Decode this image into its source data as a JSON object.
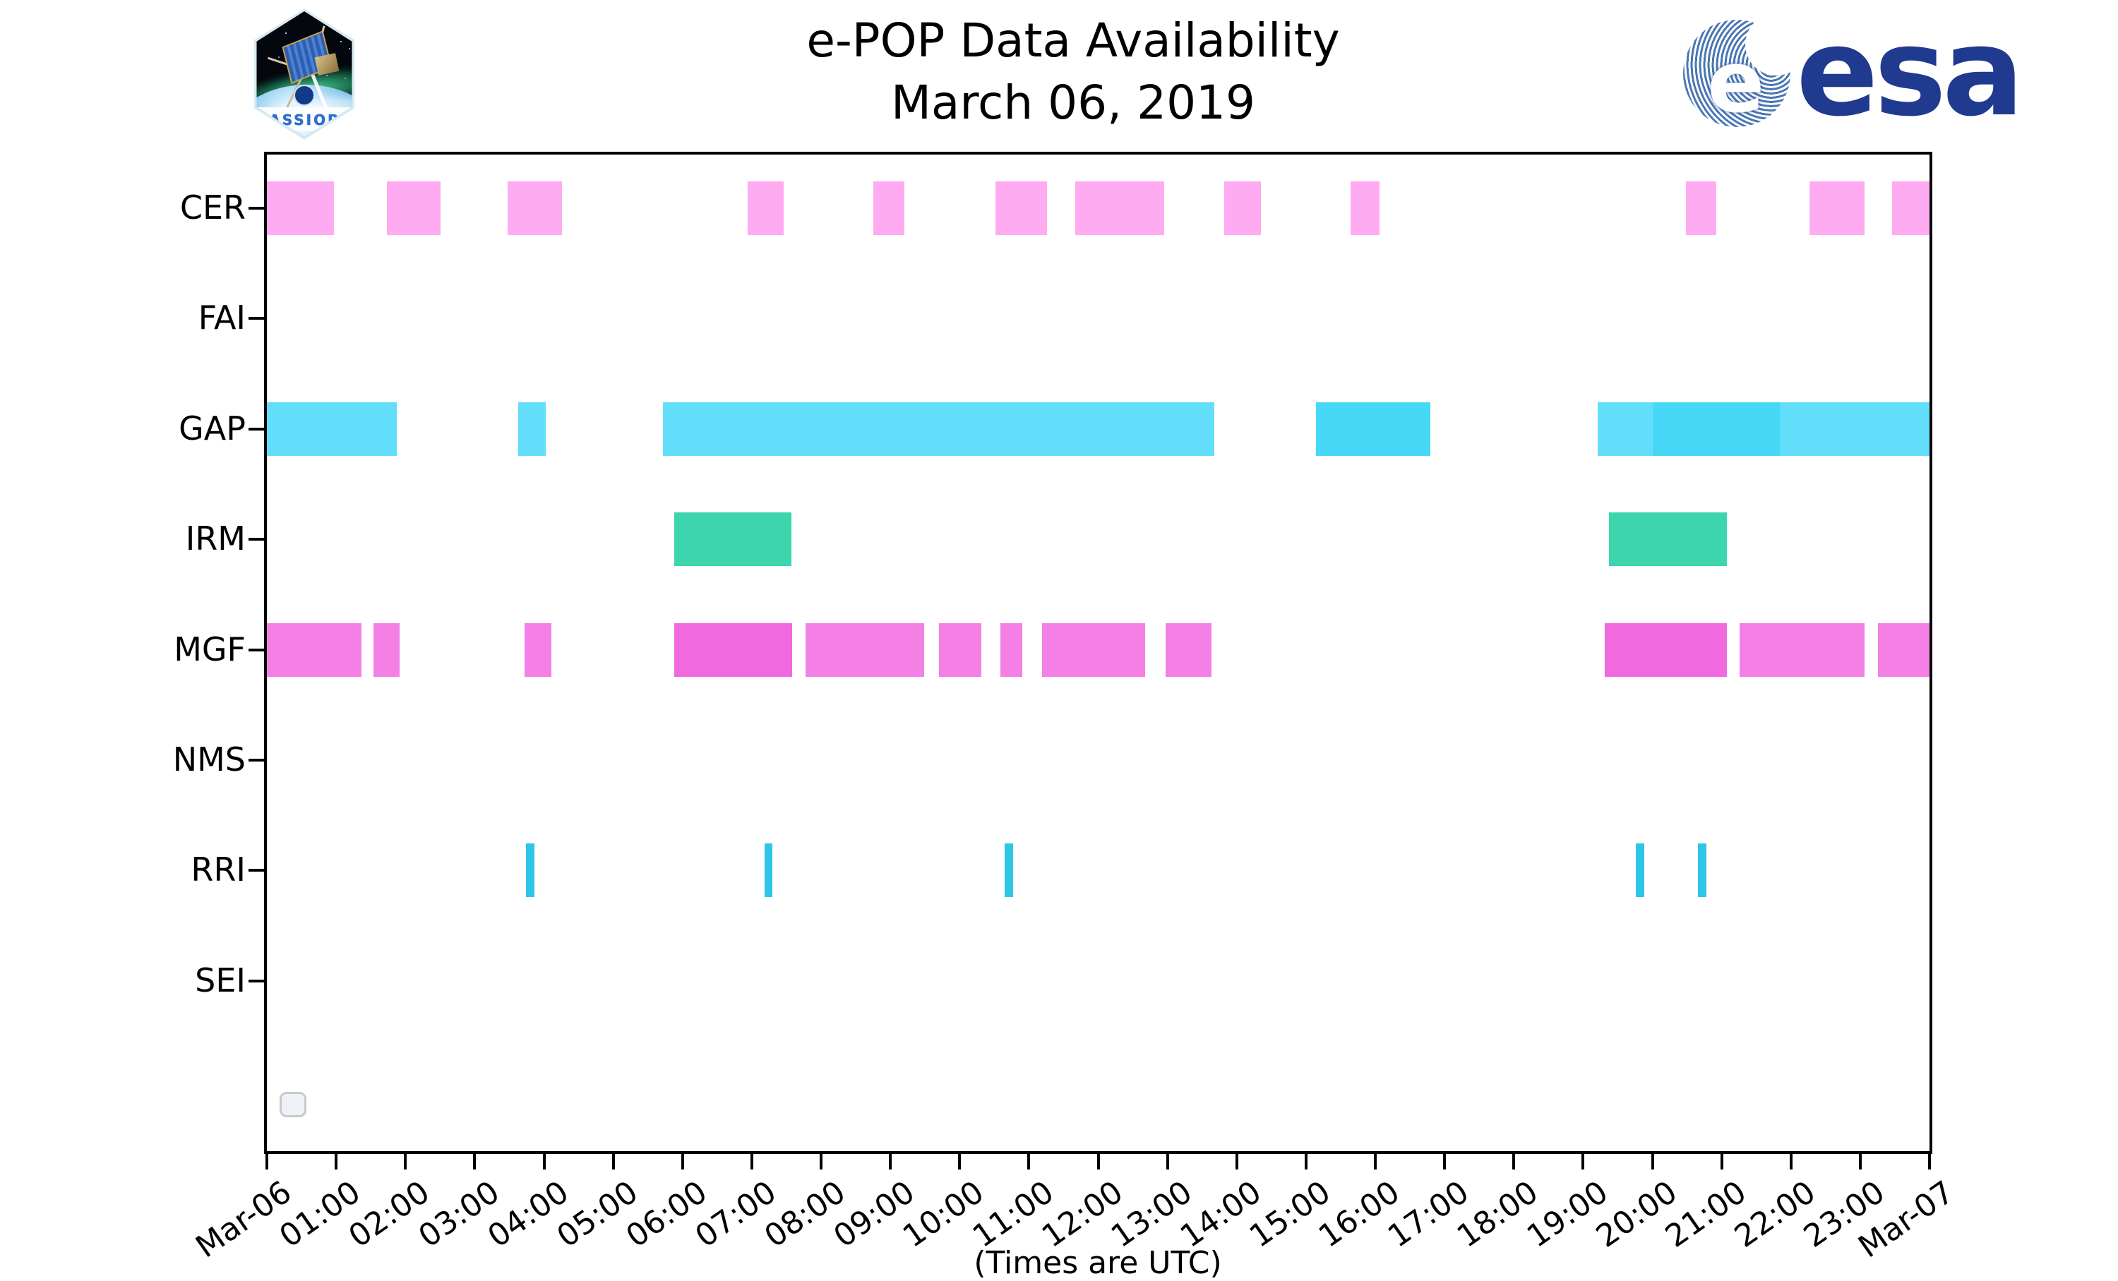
{
  "header": {
    "cassiope_label": "CASSIOPE",
    "esa_wordmark": "esa",
    "esa_e": "e"
  },
  "colors": {
    "pink": "#ffabf2",
    "cyan_light": "#63defa",
    "cyan_dark": "#48d8f7",
    "teal": "#3dd5ae",
    "magenta_light": "#f480e5",
    "magenta_dark": "#f169df",
    "rri_blue": "#2ec6e6",
    "esa_blue": "#1f3a8f",
    "axis_black": "#000000"
  },
  "dark_variant_of": {
    "cyan_light": "cyan_dark",
    "magenta_light": "magenta_dark"
  },
  "chart_data": {
    "type": "timeline",
    "title": "e-POP Data Availability",
    "subtitle": "March 06, 2019",
    "xlabel": "(Times are UTC)",
    "x_range_hours": [
      0,
      24
    ],
    "x_tick_labels": [
      "Mar-06",
      "01:00",
      "02:00",
      "03:00",
      "04:00",
      "05:00",
      "06:00",
      "07:00",
      "08:00",
      "09:00",
      "10:00",
      "11:00",
      "12:00",
      "13:00",
      "14:00",
      "15:00",
      "16:00",
      "17:00",
      "18:00",
      "19:00",
      "20:00",
      "21:00",
      "22:00",
      "23:00",
      "Mar-07"
    ],
    "rows": [
      {
        "label": "CER",
        "color_key": "pink",
        "intervals": [
          [
            0,
            0.97
          ],
          [
            1.73,
            2.51
          ],
          [
            3.48,
            4.26
          ],
          [
            6.94,
            7.46
          ],
          [
            8.75,
            9.2
          ],
          [
            10.52,
            11.26
          ],
          [
            11.67,
            12.95
          ],
          [
            13.82,
            14.35
          ],
          [
            15.64,
            16.06
          ],
          [
            20.48,
            20.92
          ],
          [
            22.27,
            23.06
          ],
          [
            23.46,
            24
          ]
        ]
      },
      {
        "label": "FAI",
        "color_key": "cyan_light",
        "intervals": []
      },
      {
        "label": "GAP",
        "color_key": "cyan_light",
        "intervals": [
          [
            0,
            1.88
          ],
          [
            3.63,
            4.03
          ],
          [
            5.72,
            13.68
          ],
          [
            15.14,
            16.8,
            "d"
          ],
          [
            19.21,
            20.01
          ],
          [
            20.01,
            21.84,
            "d"
          ],
          [
            21.84,
            24
          ]
        ]
      },
      {
        "label": "IRM",
        "color_key": "teal",
        "intervals": [
          [
            5.88,
            7.57
          ],
          [
            19.37,
            21.08
          ]
        ]
      },
      {
        "label": "MGF",
        "color_key": "magenta_light",
        "intervals": [
          [
            0,
            1.37
          ],
          [
            1.54,
            1.92
          ],
          [
            3.72,
            4.11
          ],
          [
            5.88,
            7.58,
            "d"
          ],
          [
            7.78,
            9.49
          ],
          [
            9.7,
            10.31
          ],
          [
            10.59,
            10.9
          ],
          [
            11.19,
            12.68
          ],
          [
            12.97,
            13.64
          ],
          [
            19.31,
            21.08,
            "d"
          ],
          [
            21.26,
            23.06
          ],
          [
            23.26,
            24
          ]
        ]
      },
      {
        "label": "NMS",
        "color_key": "cyan_light",
        "intervals": []
      },
      {
        "label": "RRI",
        "color_key": "rri_blue",
        "intervals": [
          [
            3.74,
            3.86
          ],
          [
            7.18,
            7.3
          ],
          [
            10.65,
            10.77
          ],
          [
            19.76,
            19.88
          ],
          [
            20.66,
            20.78
          ]
        ]
      },
      {
        "label": "SEI",
        "color_key": "teal",
        "intervals": []
      }
    ]
  }
}
